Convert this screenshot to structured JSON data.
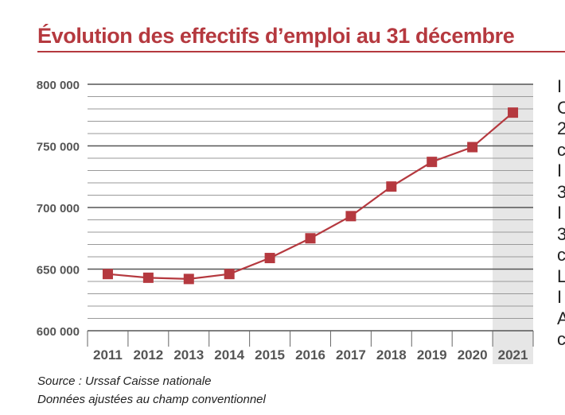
{
  "title": "Évolution des effectifs d’emploi au 31 décembre",
  "source_lines": [
    "Source : Urssaf Caisse nationale",
    "Données ajustées au champ conventionnel"
  ],
  "side_text": [
    "I",
    "C",
    "2",
    "c",
    "I",
    "3",
    "I",
    "3",
    "c",
    "L",
    "I",
    "A",
    "c"
  ],
  "colors": {
    "accent": "#b5393f",
    "series": "#b5393f",
    "highlight_band": "#e6e6e6"
  },
  "chart_data": {
    "type": "line",
    "title": "Évolution des effectifs d’emploi au 31 décembre",
    "xlabel": "",
    "ylabel": "",
    "categories": [
      "2011",
      "2012",
      "2013",
      "2014",
      "2015",
      "2016",
      "2017",
      "2018",
      "2019",
      "2020",
      "2021"
    ],
    "values": [
      646000,
      643000,
      642000,
      646000,
      659000,
      675000,
      693000,
      717000,
      737000,
      749000,
      777000
    ],
    "ylim": [
      600000,
      800000
    ],
    "y_ticks": [
      "600 000",
      "650 000",
      "700 000",
      "750 000",
      "800 000"
    ],
    "y_tick_values": [
      600000,
      650000,
      700000,
      750000,
      800000
    ],
    "minor_grid_step": 10000,
    "highlight_category": "2021",
    "grid": true,
    "legend": "none"
  }
}
